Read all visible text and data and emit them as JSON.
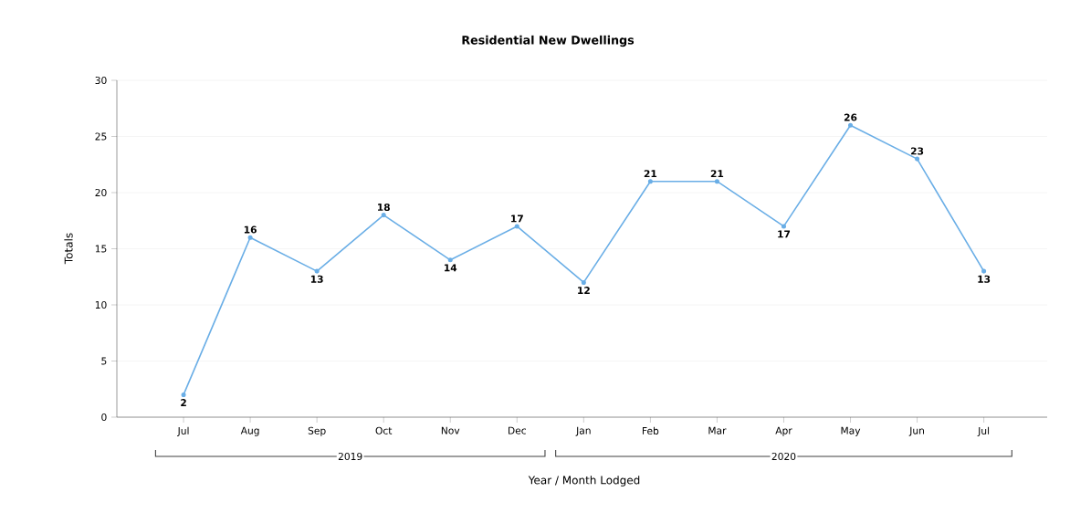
{
  "chart_data": {
    "type": "line",
    "title": "Residential New Dwellings",
    "xlabel": "Year / Month Lodged",
    "ylabel": "Totals",
    "categories": [
      "Jul",
      "Aug",
      "Sep",
      "Oct",
      "Nov",
      "Dec",
      "Jan",
      "Feb",
      "Mar",
      "Apr",
      "May",
      "Jun",
      "Jul"
    ],
    "values": [
      2,
      16,
      13,
      18,
      14,
      17,
      12,
      21,
      21,
      17,
      26,
      23,
      13
    ],
    "color": "#6aaee6",
    "ylim": [
      0,
      30
    ],
    "yticks": [
      0,
      5,
      10,
      15,
      20,
      25,
      30
    ],
    "grid": "y",
    "marker": "circle",
    "line_style": "solid",
    "data_labels": true,
    "annotations": [
      "2019",
      "2020"
    ]
  }
}
